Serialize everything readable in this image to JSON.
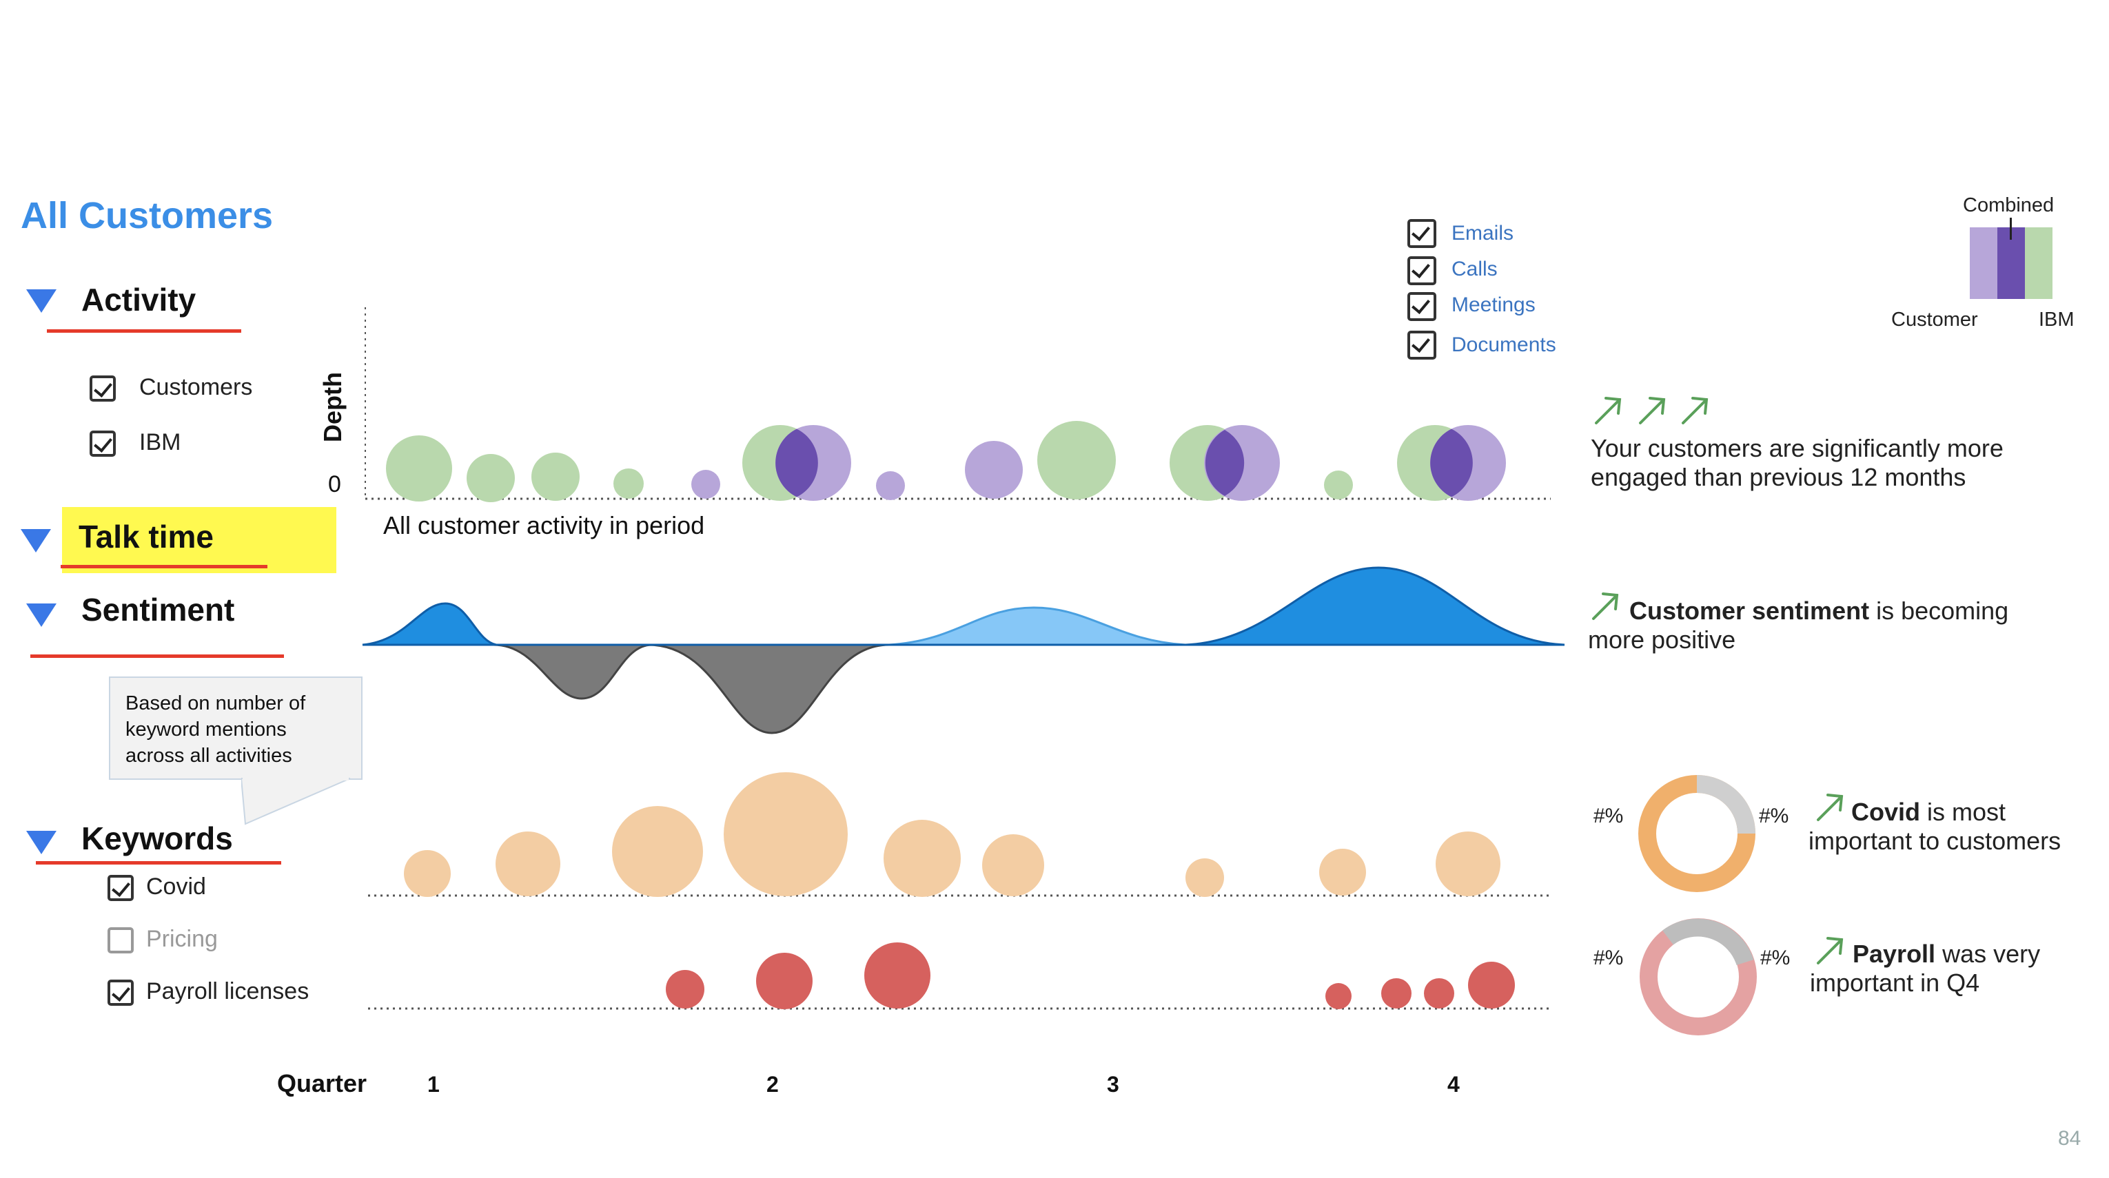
{
  "page": {
    "title": "All Customers",
    "page_number": "84"
  },
  "sections": {
    "activity": {
      "label": "Activity",
      "filters": [
        {
          "label": "Customers",
          "checked": true
        },
        {
          "label": "IBM",
          "checked": true
        }
      ]
    },
    "talk_time": {
      "label": "Talk time"
    },
    "sentiment": {
      "label": "Sentiment",
      "tooltip": [
        "Based on number of",
        "keyword mentions",
        "across all activities"
      ]
    },
    "keywords": {
      "label": "Keywords",
      "filters": [
        {
          "label": "Covid",
          "checked": true
        },
        {
          "label": "Pricing",
          "checked": false
        },
        {
          "label": "Payroll licenses",
          "checked": true
        }
      ]
    }
  },
  "legend": {
    "activity_types": [
      {
        "label": "Emails",
        "checked": true
      },
      {
        "label": "Calls",
        "checked": true
      },
      {
        "label": "Meetings",
        "checked": true
      },
      {
        "label": "Documents",
        "checked": true
      }
    ],
    "combined": {
      "label": "Combined",
      "left_label": "Customer",
      "right_label": "IBM",
      "colors": {
        "customer": "#b7a6d9",
        "combined": "#6a4fae",
        "ibm": "#b9d8ad"
      }
    }
  },
  "chart": {
    "y_axis_label": "Depth",
    "y_zero_label": "0",
    "activity_caption": "All customer activity in period",
    "x_axis_label": "Quarter",
    "quarters": [
      "1",
      "2",
      "3",
      "4"
    ]
  },
  "insights": {
    "activity": {
      "text": [
        "Your customers are significantly more",
        "engaged than previous 12 months"
      ]
    },
    "sentiment": {
      "bold": "Customer sentiment",
      "rest": " is becoming",
      "line2": "more positive"
    },
    "covid": {
      "bold": "Covid",
      "rest": " is most",
      "line2": "important to customers",
      "left_pct": "#%",
      "right_pct": "#%"
    },
    "payroll": {
      "bold": "Payroll",
      "rest": " was very",
      "line2": "important in Q4",
      "left_pct": "#%",
      "right_pct": "#%"
    }
  },
  "colors": {
    "accent": "#3b8ee6",
    "customer": "#b7a6d9",
    "ibm": "#b9d8ad",
    "overlap": "#6a4fae",
    "positive": "#1f8ee0",
    "positive_light": "#86c7f7",
    "negative": "#7a7a7a",
    "covid": "#f3cda3",
    "payroll": "#d6615e",
    "highlight": "#fff950",
    "underline": "#e53a2a",
    "trend_arrow": "#5aa05a"
  }
}
